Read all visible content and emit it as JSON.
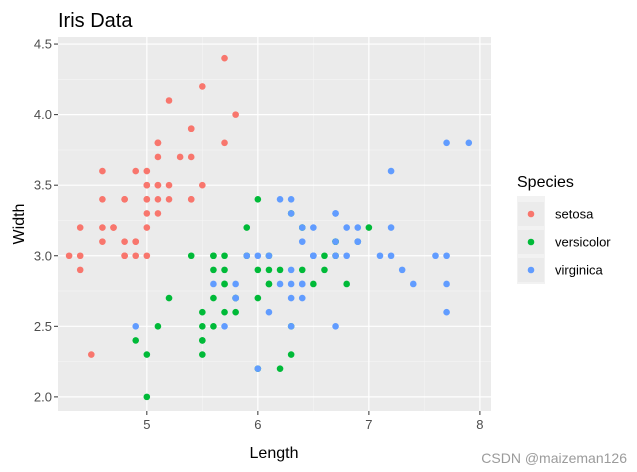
{
  "chart_data": {
    "type": "scatter",
    "title": "Iris Data",
    "xlabel": "Length",
    "ylabel": "Width",
    "xlim": [
      4.2,
      8.1
    ],
    "ylim": [
      1.9,
      4.55
    ],
    "x_ticks": [
      5,
      6,
      7,
      8
    ],
    "y_ticks": [
      2.0,
      2.5,
      3.0,
      3.5,
      4.0,
      4.5
    ],
    "x_tick_labels": [
      "5",
      "6",
      "7",
      "8"
    ],
    "y_tick_labels": [
      "2.0",
      "2.5",
      "3.0",
      "3.5",
      "4.0",
      "4.5"
    ],
    "grid": true,
    "legend": {
      "title": "Species",
      "position": "right"
    },
    "series": [
      {
        "name": "setosa",
        "color": "#F8766D",
        "points": [
          [
            5.1,
            3.5
          ],
          [
            4.9,
            3.0
          ],
          [
            4.7,
            3.2
          ],
          [
            4.6,
            3.1
          ],
          [
            5.0,
            3.6
          ],
          [
            5.4,
            3.9
          ],
          [
            4.6,
            3.4
          ],
          [
            5.0,
            3.4
          ],
          [
            4.4,
            2.9
          ],
          [
            4.9,
            3.1
          ],
          [
            5.4,
            3.7
          ],
          [
            4.8,
            3.4
          ],
          [
            4.8,
            3.0
          ],
          [
            4.3,
            3.0
          ],
          [
            5.8,
            4.0
          ],
          [
            5.7,
            4.4
          ],
          [
            5.4,
            3.9
          ],
          [
            5.1,
            3.5
          ],
          [
            5.7,
            3.8
          ],
          [
            5.1,
            3.8
          ],
          [
            5.4,
            3.4
          ],
          [
            5.1,
            3.7
          ],
          [
            4.6,
            3.6
          ],
          [
            5.1,
            3.3
          ],
          [
            4.8,
            3.4
          ],
          [
            5.0,
            3.0
          ],
          [
            5.0,
            3.4
          ],
          [
            5.2,
            3.5
          ],
          [
            5.2,
            3.4
          ],
          [
            4.7,
            3.2
          ],
          [
            4.8,
            3.1
          ],
          [
            5.4,
            3.4
          ],
          [
            5.2,
            4.1
          ],
          [
            5.5,
            4.2
          ],
          [
            4.9,
            3.1
          ],
          [
            5.0,
            3.2
          ],
          [
            5.5,
            3.5
          ],
          [
            4.9,
            3.6
          ],
          [
            4.4,
            3.0
          ],
          [
            5.1,
            3.4
          ],
          [
            5.0,
            3.5
          ],
          [
            4.5,
            2.3
          ],
          [
            4.4,
            3.2
          ],
          [
            5.0,
            3.5
          ],
          [
            5.1,
            3.8
          ],
          [
            4.8,
            3.0
          ],
          [
            5.1,
            3.8
          ],
          [
            4.6,
            3.2
          ],
          [
            5.3,
            3.7
          ],
          [
            5.0,
            3.3
          ]
        ]
      },
      {
        "name": "versicolor",
        "color": "#00BA38",
        "points": [
          [
            7.0,
            3.2
          ],
          [
            6.4,
            3.2
          ],
          [
            6.9,
            3.1
          ],
          [
            5.5,
            2.3
          ],
          [
            6.5,
            2.8
          ],
          [
            5.7,
            2.8
          ],
          [
            6.3,
            3.3
          ],
          [
            4.9,
            2.4
          ],
          [
            6.6,
            2.9
          ],
          [
            5.2,
            2.7
          ],
          [
            5.0,
            2.0
          ],
          [
            5.9,
            3.0
          ],
          [
            6.0,
            2.2
          ],
          [
            6.1,
            2.9
          ],
          [
            5.6,
            2.9
          ],
          [
            6.7,
            3.1
          ],
          [
            5.6,
            3.0
          ],
          [
            5.8,
            2.7
          ],
          [
            6.2,
            2.2
          ],
          [
            5.6,
            2.5
          ],
          [
            5.9,
            3.2
          ],
          [
            6.1,
            2.8
          ],
          [
            6.3,
            2.5
          ],
          [
            6.1,
            2.8
          ],
          [
            6.4,
            2.9
          ],
          [
            6.6,
            3.0
          ],
          [
            6.8,
            2.8
          ],
          [
            6.7,
            3.0
          ],
          [
            6.0,
            2.9
          ],
          [
            5.7,
            2.6
          ],
          [
            5.5,
            2.4
          ],
          [
            5.5,
            2.4
          ],
          [
            5.8,
            2.7
          ],
          [
            6.0,
            2.7
          ],
          [
            5.4,
            3.0
          ],
          [
            6.0,
            3.4
          ],
          [
            6.7,
            3.1
          ],
          [
            6.3,
            2.3
          ],
          [
            5.6,
            3.0
          ],
          [
            5.5,
            2.5
          ],
          [
            5.5,
            2.6
          ],
          [
            6.1,
            3.0
          ],
          [
            5.8,
            2.6
          ],
          [
            5.0,
            2.3
          ],
          [
            5.6,
            2.7
          ],
          [
            5.7,
            3.0
          ],
          [
            5.7,
            2.9
          ],
          [
            6.2,
            2.9
          ],
          [
            5.1,
            2.5
          ],
          [
            5.7,
            2.8
          ]
        ]
      },
      {
        "name": "virginica",
        "color": "#619CFF",
        "points": [
          [
            6.3,
            3.3
          ],
          [
            5.8,
            2.7
          ],
          [
            7.1,
            3.0
          ],
          [
            6.3,
            2.9
          ],
          [
            6.5,
            3.0
          ],
          [
            7.6,
            3.0
          ],
          [
            4.9,
            2.5
          ],
          [
            7.3,
            2.9
          ],
          [
            6.7,
            2.5
          ],
          [
            7.2,
            3.6
          ],
          [
            6.5,
            3.2
          ],
          [
            6.4,
            2.7
          ],
          [
            6.8,
            3.0
          ],
          [
            5.7,
            2.5
          ],
          [
            5.8,
            2.8
          ],
          [
            6.4,
            3.2
          ],
          [
            6.5,
            3.0
          ],
          [
            7.7,
            3.8
          ],
          [
            7.7,
            2.6
          ],
          [
            6.0,
            2.2
          ],
          [
            6.9,
            3.2
          ],
          [
            5.6,
            2.8
          ],
          [
            7.7,
            2.8
          ],
          [
            6.3,
            2.7
          ],
          [
            6.7,
            3.3
          ],
          [
            7.2,
            3.2
          ],
          [
            6.2,
            2.8
          ],
          [
            6.1,
            3.0
          ],
          [
            6.4,
            2.8
          ],
          [
            7.2,
            3.0
          ],
          [
            7.4,
            2.8
          ],
          [
            7.9,
            3.8
          ],
          [
            6.4,
            2.8
          ],
          [
            6.3,
            2.8
          ],
          [
            6.1,
            2.6
          ],
          [
            7.7,
            3.0
          ],
          [
            6.3,
            3.4
          ],
          [
            6.4,
            3.1
          ],
          [
            6.0,
            3.0
          ],
          [
            6.9,
            3.1
          ],
          [
            6.7,
            3.1
          ],
          [
            6.9,
            3.1
          ],
          [
            5.8,
            2.7
          ],
          [
            6.8,
            3.2
          ],
          [
            6.7,
            3.3
          ],
          [
            6.7,
            3.0
          ],
          [
            6.3,
            2.5
          ],
          [
            6.5,
            3.0
          ],
          [
            6.2,
            3.4
          ],
          [
            5.9,
            3.0
          ]
        ]
      }
    ]
  },
  "watermark": "CSDN @maizeman126"
}
